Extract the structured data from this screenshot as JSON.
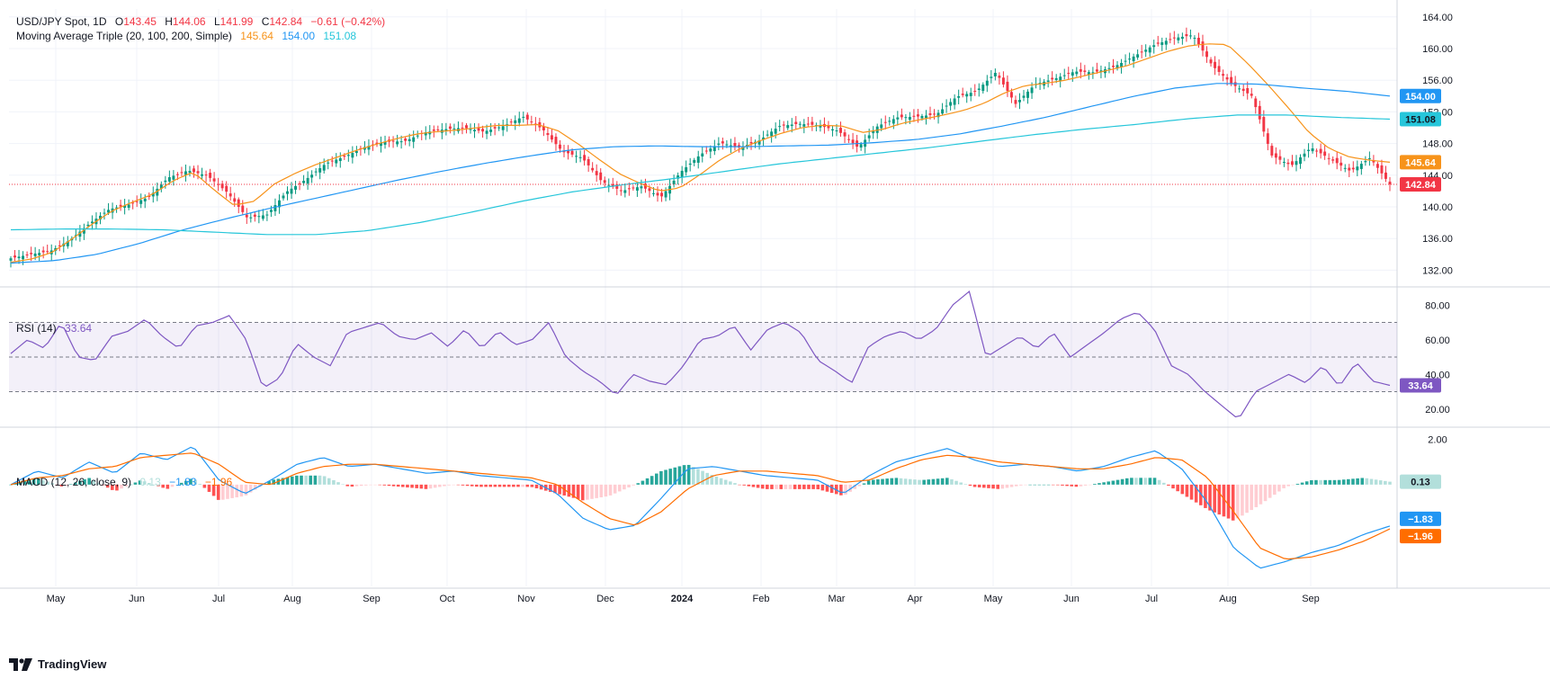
{
  "header": {
    "symbol": "USD/JPY Spot, 1D",
    "ohlc": {
      "o_label": "O",
      "o": "143.45",
      "h_label": "H",
      "h": "144.06",
      "l_label": "L",
      "l": "141.99",
      "c_label": "C",
      "c": "142.84"
    },
    "change": "−0.61 (−0.42%)"
  },
  "ma_legend": {
    "label": "Moving Average Triple (20, 100, 200, Simple)",
    "v20": "145.64",
    "v100": "154.00",
    "v200": "151.08"
  },
  "rsi_legend": {
    "label": "RSI (14)",
    "value": "33.64"
  },
  "macd_legend": {
    "label": "MACD (12, 26, close, 9)",
    "hist": "0.13",
    "macd": "−1.83",
    "signal": "−1.96"
  },
  "branding": {
    "name": "TradingView"
  },
  "colors": {
    "up": "#089981",
    "down": "#F23645",
    "ma20": "#F7931A",
    "ma100": "#2196F3",
    "ma200": "#26C6DA",
    "rsi": "#7E57C2",
    "macd": "#2196F3",
    "signal": "#FF6D00",
    "hist_up": "#26A69A",
    "hist_up_light": "#B2DFDB",
    "hist_down": "#FF5252",
    "hist_down_light": "#FFCDD2"
  },
  "chart_data": [
    {
      "type": "candlestick",
      "title": "USD/JPY Spot, 1D",
      "x_tick_labels": [
        "May",
        "Jun",
        "Jul",
        "Aug",
        "Sep",
        "Oct",
        "Nov",
        "Dec",
        "2024",
        "Feb",
        "Mar",
        "Apr",
        "May",
        "Jun",
        "Jul",
        "Aug",
        "Sep"
      ],
      "y_tick_labels": [
        "164.00",
        "160.00",
        "156.00",
        "152.00",
        "148.00",
        "144.00",
        "140.00",
        "136.00",
        "132.00"
      ],
      "ylim": [
        130,
        165
      ],
      "last_price": 142.84,
      "price_anchors_weekly": [
        133.5,
        134.0,
        134.4,
        135.8,
        137.9,
        139.7,
        140.3,
        141.2,
        143.7,
        144.6,
        143.9,
        141.8,
        138.6,
        139.0,
        141.9,
        143.5,
        145.5,
        146.4,
        147.6,
        148.2,
        148.3,
        149.4,
        149.8,
        150.0,
        149.5,
        150.2,
        151.4,
        149.8,
        147.0,
        146.2,
        143.2,
        142.0,
        142.6,
        141.2,
        144.4,
        146.6,
        148.1,
        147.5,
        148.4,
        150.2,
        150.5,
        150.3,
        149.6,
        147.5,
        150.2,
        151.3,
        151.4,
        151.7,
        153.9,
        154.6,
        157.0,
        153.0,
        155.5,
        156.2,
        157.1,
        157.0,
        157.7,
        159.0,
        160.4,
        161.3,
        161.7,
        157.8,
        155.5,
        154.0,
        146.5,
        145.2,
        147.5,
        146.0,
        144.5,
        146.2,
        142.84
      ],
      "ma_series": [
        {
          "name": "MA 20",
          "last": 145.64,
          "anchors": [
            133.0,
            133.4,
            134.2,
            135.9,
            137.8,
            139.5,
            140.6,
            141.6,
            143.3,
            144.4,
            142.2,
            140.2,
            140.7,
            142.9,
            144.2,
            145.3,
            146.2,
            147.1,
            147.9,
            148.6,
            149.2,
            149.5,
            149.7,
            150.0,
            150.3,
            150.3,
            150.4,
            149.6,
            147.9,
            146.0,
            144.2,
            143.0,
            142.0,
            142.4,
            144.1,
            146.0,
            147.4,
            148.4,
            149.3,
            150.0,
            150.3,
            150.2,
            149.4,
            149.8,
            150.6,
            151.1,
            151.6,
            152.2,
            153.1,
            154.4,
            155.3,
            155.6,
            156.0,
            156.6,
            157.2,
            157.8,
            158.7,
            159.6,
            160.3,
            160.6,
            160.5,
            158.1,
            155.4,
            152.5,
            149.4,
            147.4,
            146.3,
            145.9,
            145.64
          ]
        },
        {
          "name": "MA 100",
          "last": 154.0,
          "anchors": [
            132.9,
            133.2,
            134.0,
            135.4,
            137.1,
            138.5,
            139.8,
            141.0,
            142.2,
            143.4,
            144.5,
            145.5,
            146.4,
            147.2,
            147.6,
            147.7,
            147.6,
            147.6,
            147.7,
            147.8,
            148.1,
            148.5,
            149.2,
            150.2,
            151.3,
            152.6,
            153.9,
            155.0,
            155.6,
            155.5,
            155.0,
            154.6,
            154.0
          ]
        },
        {
          "name": "MA 200",
          "last": 151.08,
          "anchors": [
            137.1,
            137.2,
            137.2,
            137.1,
            136.8,
            136.5,
            136.5,
            137.0,
            138.0,
            139.3,
            140.7,
            141.9,
            142.8,
            143.6,
            144.5,
            145.4,
            146.1,
            146.8,
            147.5,
            148.3,
            149.1,
            149.8,
            150.4,
            151.1,
            151.6,
            151.6,
            151.3,
            151.08
          ]
        }
      ]
    },
    {
      "type": "line",
      "title": "RSI (14)",
      "y_tick_labels": [
        "80.00",
        "60.00",
        "40.00",
        "20.00"
      ],
      "ylim": [
        10,
        90
      ],
      "bands": [
        30,
        50,
        70
      ],
      "last": 33.64,
      "anchors": [
        52,
        60,
        55,
        70,
        50,
        48,
        62,
        65,
        72,
        62,
        55,
        68,
        70,
        74,
        60,
        32,
        38,
        58,
        50,
        45,
        64,
        67,
        70,
        62,
        60,
        64,
        56,
        66,
        55,
        65,
        57,
        60,
        70,
        50,
        42,
        36,
        28,
        40,
        36,
        34,
        45,
        60,
        62,
        68,
        54,
        66,
        70,
        64,
        48,
        42,
        35,
        56,
        62,
        65,
        60,
        66,
        80,
        88,
        50,
        56,
        62,
        55,
        64,
        50,
        57,
        64,
        72,
        76,
        66,
        45,
        40,
        30,
        22,
        14,
        30,
        35,
        40,
        35,
        45,
        33,
        47,
        36,
        33.64
      ]
    },
    {
      "type": "line",
      "title": "MACD (12, 26, close, 9)",
      "y_tick_labels": [
        "2.00"
      ],
      "ylim": [
        -4.5,
        2.5
      ],
      "macd_anchors": [
        0.0,
        0.6,
        0.3,
        1.0,
        0.5,
        1.4,
        1.1,
        1.7,
        0.2,
        -0.4,
        0.2,
        0.9,
        1.2,
        0.8,
        0.9,
        0.7,
        0.5,
        0.6,
        0.4,
        0.3,
        0.2,
        -0.4,
        -1.5,
        -2.0,
        -1.8,
        -0.6,
        0.7,
        0.8,
        0.6,
        0.4,
        0.3,
        0.2,
        -0.4,
        0.4,
        1.0,
        1.3,
        1.6,
        1.1,
        0.8,
        0.9,
        0.8,
        0.6,
        0.8,
        1.2,
        1.5,
        0.7,
        -0.8,
        -2.8,
        -3.7,
        -3.4,
        -3.0,
        -2.7,
        -2.2,
        -1.83
      ],
      "signal_anchors": [
        0.0,
        0.3,
        0.4,
        0.7,
        0.8,
        1.2,
        1.3,
        1.4,
        0.9,
        0.1,
        0.0,
        0.5,
        0.8,
        0.9,
        0.9,
        0.8,
        0.7,
        0.6,
        0.5,
        0.4,
        0.3,
        0.0,
        -0.8,
        -1.5,
        -1.8,
        -1.2,
        -0.2,
        0.4,
        0.6,
        0.6,
        0.5,
        0.4,
        0.1,
        0.2,
        0.7,
        1.1,
        1.3,
        1.2,
        1.0,
        0.9,
        0.8,
        0.7,
        0.7,
        0.9,
        1.2,
        1.1,
        0.3,
        -1.2,
        -2.8,
        -3.3,
        -3.2,
        -2.9,
        -2.5,
        -1.96
      ],
      "hist_last": 0.13,
      "macd_last": -1.83,
      "signal_last": -1.96
    }
  ]
}
